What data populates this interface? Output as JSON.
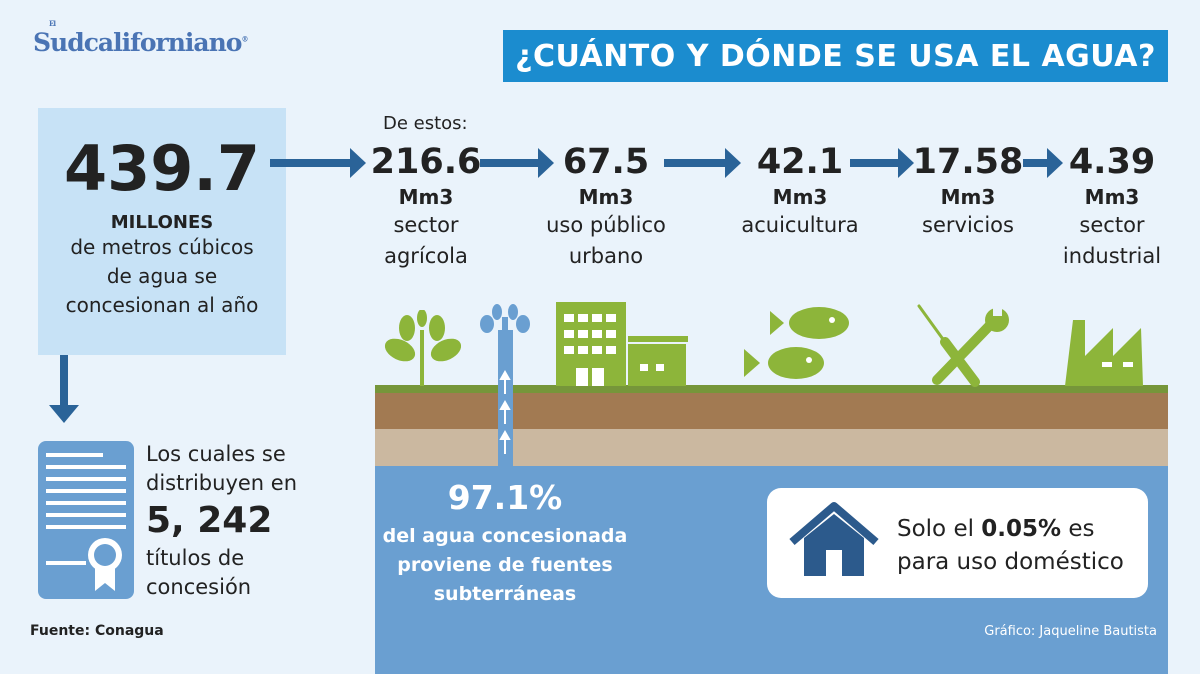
{
  "logo": {
    "prefix": "El",
    "name": "Sudcaliforniano"
  },
  "title": "¿CUÁNTO Y DÓNDE SE USA EL AGUA?",
  "total": {
    "value": "439.7",
    "unit": "MILLONES",
    "lines": [
      "de metros cúbicos",
      "de agua se",
      "concesionan al año"
    ]
  },
  "intro": "De estos:",
  "sectors": [
    {
      "value": "216.6",
      "unit": "Mm3",
      "label": [
        "sector",
        "agrícola"
      ],
      "icon": "plant-icon"
    },
    {
      "value": "67.5",
      "unit": "Mm3",
      "label": [
        "uso público",
        "urbano"
      ],
      "icon": "buildings-icon"
    },
    {
      "value": "42.1",
      "unit": "Mm3",
      "label": [
        "acuicultura"
      ],
      "icon": "fish-icon"
    },
    {
      "value": "17.58",
      "unit": "Mm3",
      "label": [
        "servicios"
      ],
      "icon": "tools-icon"
    },
    {
      "value": "4.39",
      "unit": "Mm3",
      "label": [
        "sector",
        "industrial"
      ],
      "icon": "factory-icon"
    }
  ],
  "titles": {
    "line1": "Los cuales se",
    "line2": "distribuyen en",
    "value": "5, 242",
    "line3": "títulos de",
    "line4": "concesión"
  },
  "groundwater": {
    "value": "97.1%",
    "lines": [
      "del agua concesionada",
      "proviene de fuentes",
      "subterráneas"
    ]
  },
  "domestic": {
    "prefix": "Solo el ",
    "value": "0.05%",
    "suffix": " es",
    "line2": "para uso doméstico"
  },
  "source": "Fuente: Conagua",
  "credit": "Gráfico: Jaqueline Bautista",
  "colors": {
    "title_bg": "#1b8ccf",
    "arrow": "#2a6398",
    "green": "#8db53a",
    "water": "#6a9fd1"
  }
}
